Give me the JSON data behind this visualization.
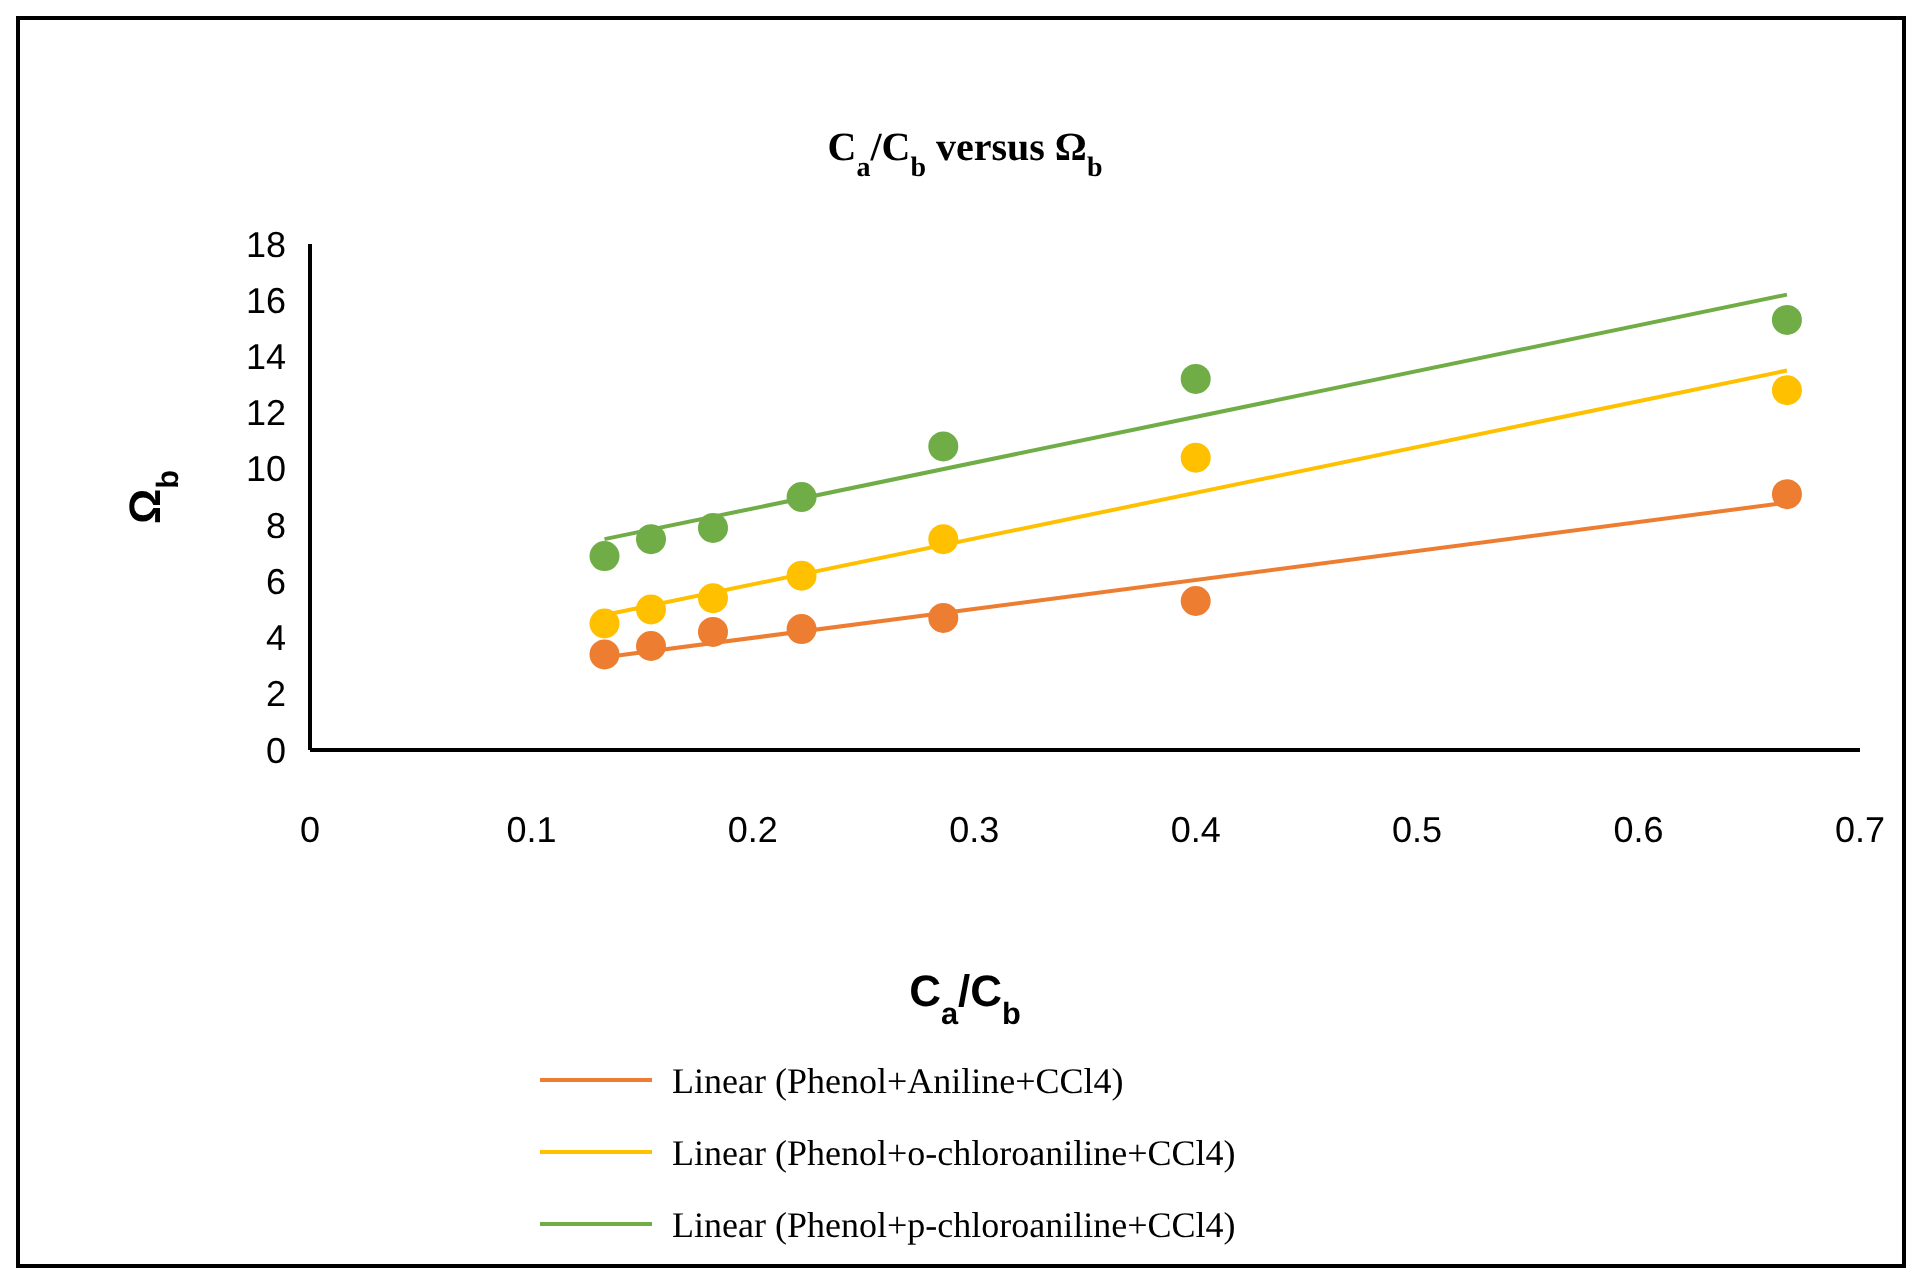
{
  "chart_data": {
    "type": "scatter",
    "title": "C$_{a}$/C$_{b}$ versus Ω$_{b}$",
    "xlabel": "C$_{a}$/C$_{b}$",
    "ylabel": "Ω$_{b}$",
    "xlim": [
      0,
      0.7
    ],
    "xticks": [
      0,
      0.1,
      0.2,
      0.3,
      0.4,
      0.5,
      0.6,
      0.7
    ],
    "ylim": [
      0,
      18
    ],
    "yticks": [
      0,
      2,
      4,
      6,
      8,
      10,
      12,
      14,
      16,
      18
    ],
    "grid": false,
    "legend": "bottom",
    "series": [
      {
        "marker": "circle",
        "color": "#ed7d31",
        "x": [
          0.133,
          0.154,
          0.182,
          0.222,
          0.286,
          0.4,
          0.667
        ],
        "values": [
          3.4,
          3.7,
          4.2,
          4.3,
          4.7,
          5.3,
          9.1
        ]
      },
      {
        "marker": "circle",
        "color": "#ffc000",
        "x": [
          0.133,
          0.154,
          0.182,
          0.222,
          0.286,
          0.4,
          0.667
        ],
        "values": [
          4.5,
          5.0,
          5.4,
          6.2,
          7.5,
          10.4,
          12.8
        ]
      },
      {
        "marker": "circle",
        "color": "#70ad47",
        "x": [
          0.133,
          0.154,
          0.182,
          0.222,
          0.286,
          0.4,
          0.667
        ],
        "values": [
          6.9,
          7.5,
          7.9,
          9.0,
          10.8,
          13.2,
          15.3
        ]
      },
      {
        "type": "line",
        "name": "Linear (Phenol+Aniline+CCl4)",
        "color": "#ed7d31",
        "x": [
          0.133,
          0.667
        ],
        "values": [
          3.3,
          8.8
        ]
      },
      {
        "type": "line",
        "name": "Linear (Phenol+o-chloroaniline+CCl4)",
        "color": "#ffc000",
        "x": [
          0.133,
          0.667
        ],
        "values": [
          4.8,
          13.5
        ]
      },
      {
        "type": "line",
        "name": "Linear (Phenol+p-chloroaniline+CCl4)",
        "color": "#70ad47",
        "x": [
          0.133,
          0.667
        ],
        "values": [
          7.5,
          16.2
        ]
      }
    ]
  }
}
